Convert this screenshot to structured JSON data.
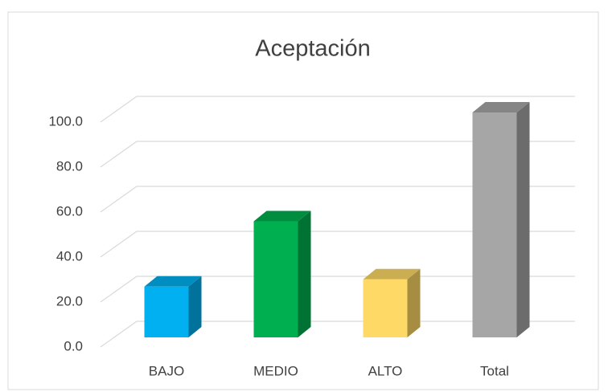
{
  "chart_data": {
    "type": "bar3d",
    "title": "Aceptación",
    "categories": [
      "BAJO",
      "MEDIO",
      "ALTO",
      "Total"
    ],
    "values": [
      22.6,
      51.6,
      25.8,
      100
    ],
    "colors": [
      "#00b0f0",
      "#00b050",
      "#ffd966",
      "#a6a6a6"
    ],
    "ylim": [
      0,
      100
    ],
    "yticks": [
      {
        "value": 0,
        "label": "0.0"
      },
      {
        "value": 20,
        "label": "20.0"
      },
      {
        "value": 40,
        "label": "40.0"
      },
      {
        "value": 60,
        "label": "60.0"
      },
      {
        "value": 80,
        "label": "80.0"
      },
      {
        "value": 100,
        "label": "100.0"
      }
    ],
    "grid": true
  }
}
